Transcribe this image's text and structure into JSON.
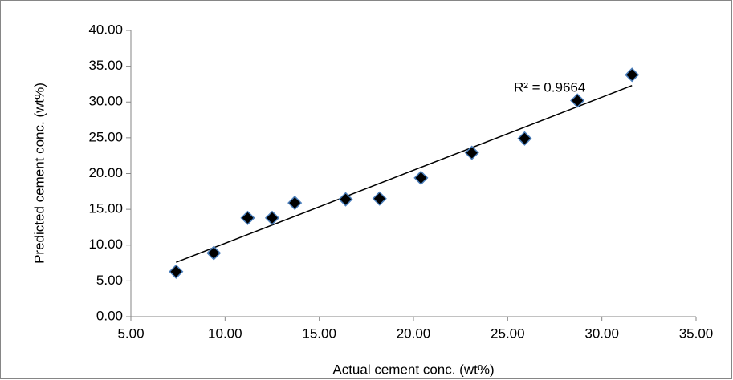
{
  "chart_data": {
    "type": "scatter",
    "x_label": "Actual cement conc. (wt%)",
    "y_label": "Predicted cement conc. (wt%)",
    "annotation": "R² = 0.9664",
    "series": [
      {
        "color": "#000000",
        "edge_color": "#4a7ebb",
        "x": [
          7.4,
          9.4,
          11.2,
          12.5,
          13.7,
          16.4,
          18.2,
          20.4,
          23.1,
          25.9,
          28.7,
          31.6
        ],
        "values": [
          6.3,
          8.9,
          13.8,
          13.8,
          15.9,
          16.4,
          16.5,
          19.4,
          22.9,
          24.9,
          30.2,
          33.8
        ]
      }
    ],
    "trendline": {
      "color": "#000000",
      "x": [
        7.4,
        31.6
      ],
      "values": [
        7.6,
        32.3
      ]
    },
    "xlim": [
      5,
      35
    ],
    "xticks": [
      {
        "value": 5,
        "label": "5.00"
      },
      {
        "value": 10,
        "label": "10.00"
      },
      {
        "value": 15,
        "label": "15.00"
      },
      {
        "value": 20,
        "label": "20.00"
      },
      {
        "value": 25,
        "label": "25.00"
      },
      {
        "value": 30,
        "label": "30.00"
      },
      {
        "value": 35,
        "label": "35.00"
      }
    ],
    "ylim": [
      0,
      40
    ],
    "yticks": [
      {
        "value": 0,
        "label": "0.00"
      },
      {
        "value": 5,
        "label": "5.00"
      },
      {
        "value": 10,
        "label": "10.00"
      },
      {
        "value": 15,
        "label": "15.00"
      },
      {
        "value": 20,
        "label": "20.00"
      },
      {
        "value": 25,
        "label": "25.00"
      },
      {
        "value": 30,
        "label": "30.00"
      },
      {
        "value": 35,
        "label": "35.00"
      },
      {
        "value": 40,
        "label": "40.00"
      }
    ],
    "grid": false
  }
}
